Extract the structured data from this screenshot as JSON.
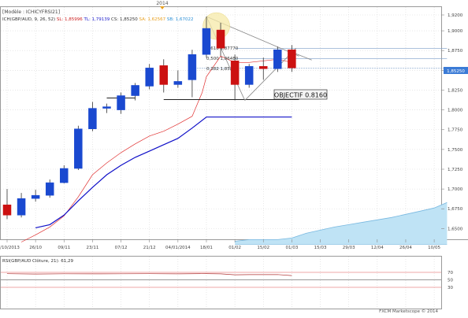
{
  "top_marker": {
    "year": "2014"
  },
  "header": {
    "model_label": "[Modèle : ICHICYFRSI21]",
    "legend": [
      {
        "text": "ICH(GBP/AUD, 9, 26, 52)",
        "color": "#333333"
      },
      {
        "text": "SL: 1,85996",
        "color": "#cc2222"
      },
      {
        "text": "TL: 1,79139",
        "color": "#2222cc"
      },
      {
        "text": "CS: 1,85250",
        "color": "#333333"
      },
      {
        "text": "SA: 1,62567",
        "color": "#e8a020"
      },
      {
        "text": "SB: 1,67022",
        "color": "#2b8fd6"
      }
    ]
  },
  "y_axis": {
    "ticks": [
      {
        "value": 1.92,
        "label": "1,9200"
      },
      {
        "value": 1.9,
        "label": "1,9000"
      },
      {
        "value": 1.875,
        "label": "1,8750"
      },
      {
        "value": 1.85,
        "label": "1,8500"
      },
      {
        "value": 1.825,
        "label": "1,8250"
      },
      {
        "value": 1.8,
        "label": "1,8000"
      },
      {
        "value": 1.775,
        "label": "1,7750"
      },
      {
        "value": 1.75,
        "label": "1,7500"
      },
      {
        "value": 1.725,
        "label": "1,7250"
      },
      {
        "value": 1.7,
        "label": "1,7000"
      },
      {
        "value": 1.675,
        "label": "1,6750"
      },
      {
        "value": 1.65,
        "label": "1,6500"
      }
    ],
    "current_price": {
      "value": 1.8525,
      "label": "1,85250"
    }
  },
  "x_axis": {
    "labels": [
      {
        "index": 0,
        "label": "12/10/2013"
      },
      {
        "index": 2,
        "label": "26/10"
      },
      {
        "index": 4,
        "label": "09/11"
      },
      {
        "index": 6,
        "label": "23/11"
      },
      {
        "index": 8,
        "label": "07/12"
      },
      {
        "index": 10,
        "label": "21/12"
      },
      {
        "index": 12,
        "label": "04/01/2014"
      },
      {
        "index": 14,
        "label": "18/01"
      },
      {
        "index": 16,
        "label": "01/02"
      },
      {
        "index": 18,
        "label": "15/02"
      },
      {
        "index": 20,
        "label": "01/03"
      },
      {
        "index": 22,
        "label": "15/03"
      },
      {
        "index": 24,
        "label": "29/03"
      },
      {
        "index": 26,
        "label": "12/04"
      },
      {
        "index": 28,
        "label": "26/04"
      },
      {
        "index": 30,
        "label": "10/05"
      }
    ]
  },
  "fib_labels": [
    {
      "value": 1.8777,
      "text": "0,618 1,87770"
    },
    {
      "value": 1.8648,
      "text": "0,500 1,86480"
    },
    {
      "value": 1.852,
      "text": "0,382 1,85200"
    }
  ],
  "objective": {
    "value": 1.816,
    "text": "OBJECTIF 0.8160"
  },
  "rsi": {
    "label": "RSI(GBP/AUD Clôture, 21): 61,29",
    "levels": [
      {
        "value": 70,
        "label": "70",
        "color": "#e05050"
      },
      {
        "value": 50,
        "label": "50",
        "color": "#333333"
      },
      {
        "value": 30,
        "label": "30",
        "color": "#e05050"
      }
    ],
    "current": 61.29
  },
  "footer": {
    "copyright": "FXCM Marketscope © 2014"
  },
  "colors": {
    "bull": "#1a49d0",
    "bear": "#cc1111",
    "tenkan": "#e03030",
    "kijun": "#1010c8",
    "cloud": "#bfe3f5",
    "cloud_line": "#78b8e0",
    "grid": "#d8d8d8",
    "current_price_box": "#3b7bd6"
  },
  "chart_data": {
    "type": "candlestick",
    "title": "",
    "instrument": "GBP/AUD",
    "period": "weekly",
    "candles": [
      {
        "x": "12/10/2013",
        "o": 1.68,
        "h": 1.7,
        "l": 1.662,
        "c": 1.667
      },
      {
        "x": "19/10",
        "o": 1.667,
        "h": 1.695,
        "l": 1.664,
        "c": 1.688
      },
      {
        "x": "26/10",
        "o": 1.688,
        "h": 1.699,
        "l": 1.684,
        "c": 1.692
      },
      {
        "x": "02/11",
        "o": 1.692,
        "h": 1.712,
        "l": 1.689,
        "c": 1.708
      },
      {
        "x": "09/11",
        "o": 1.708,
        "h": 1.73,
        "l": 1.707,
        "c": 1.726
      },
      {
        "x": "16/11",
        "o": 1.726,
        "h": 1.78,
        "l": 1.724,
        "c": 1.776
      },
      {
        "x": "23/11",
        "o": 1.776,
        "h": 1.81,
        "l": 1.773,
        "c": 1.802
      },
      {
        "x": "30/11",
        "o": 1.802,
        "h": 1.808,
        "l": 1.796,
        "c": 1.804
      },
      {
        "x": "07/12",
        "o": 1.8,
        "h": 1.822,
        "l": 1.795,
        "c": 1.818
      },
      {
        "x": "14/12",
        "o": 1.818,
        "h": 1.834,
        "l": 1.812,
        "c": 1.831
      },
      {
        "x": "21/12",
        "o": 1.83,
        "h": 1.858,
        "l": 1.826,
        "c": 1.853
      },
      {
        "x": "28/12",
        "o": 1.856,
        "h": 1.864,
        "l": 1.822,
        "c": 1.832
      },
      {
        "x": "04/01/2014",
        "o": 1.832,
        "h": 1.85,
        "l": 1.828,
        "c": 1.836
      },
      {
        "x": "11/01",
        "o": 1.838,
        "h": 1.876,
        "l": 1.816,
        "c": 1.87
      },
      {
        "x": "18/01",
        "o": 1.87,
        "h": 1.918,
        "l": 1.866,
        "c": 1.903
      },
      {
        "x": "25/01",
        "o": 1.901,
        "h": 1.91,
        "l": 1.868,
        "c": 1.878
      },
      {
        "x": "01/02",
        "o": 1.862,
        "h": 1.87,
        "l": 1.812,
        "c": 1.832
      },
      {
        "x": "08/02",
        "o": 1.832,
        "h": 1.858,
        "l": 1.828,
        "c": 1.855
      },
      {
        "x": "15/02",
        "o": 1.855,
        "h": 1.866,
        "l": 1.838,
        "c": 1.852
      },
      {
        "x": "22/02",
        "o": 1.852,
        "h": 1.88,
        "l": 1.848,
        "c": 1.876
      },
      {
        "x": "01/03",
        "o": 1.876,
        "h": 1.882,
        "l": 1.848,
        "c": 1.853
      }
    ]
  }
}
